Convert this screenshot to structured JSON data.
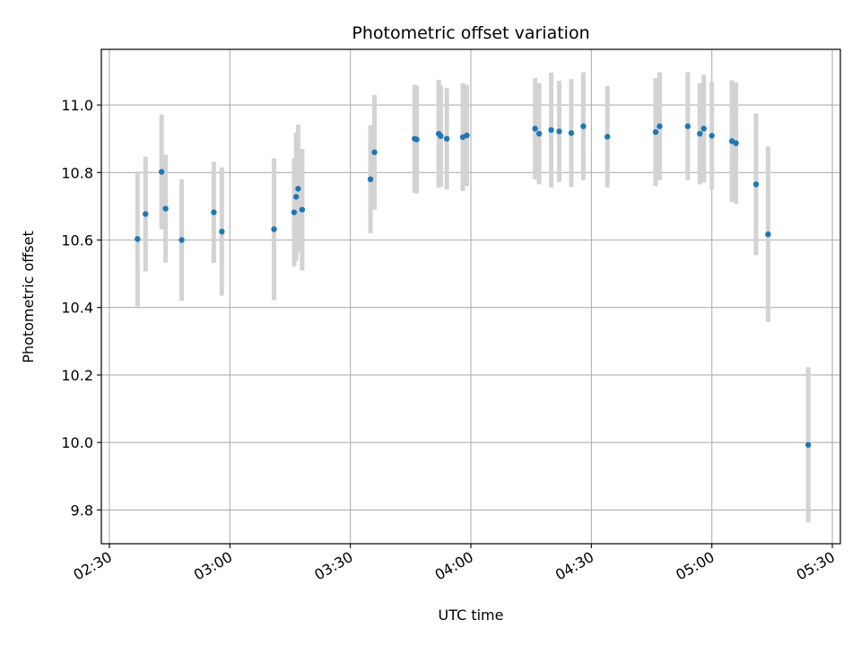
{
  "chart_data": {
    "type": "scatter",
    "title": "Photometric offset variation",
    "xlabel": "UTC time",
    "ylabel": "Photometric offset",
    "x_axis_kind": "time (minutes from 00:00 UTC)",
    "xlim": [
      "02:28",
      "05:32"
    ],
    "ylim": [
      9.7,
      11.165
    ],
    "x_ticks": [
      "02:30",
      "03:00",
      "03:30",
      "04:00",
      "04:30",
      "05:00",
      "05:30"
    ],
    "y_ticks": [
      "9.8",
      "10.0",
      "10.2",
      "10.4",
      "10.6",
      "10.8",
      "11.0"
    ],
    "grid": true,
    "point_color": "#1f77b4",
    "errorbar_color": "#d3d3d3",
    "points": [
      {
        "t": "02:37",
        "y": 10.603,
        "err": 0.2
      },
      {
        "t": "02:39",
        "y": 10.677,
        "err": 0.17
      },
      {
        "t": "02:43",
        "y": 10.802,
        "err": 0.17
      },
      {
        "t": "02:44",
        "y": 10.693,
        "err": 0.16
      },
      {
        "t": "02:48",
        "y": 10.6,
        "err": 0.18
      },
      {
        "t": "02:56",
        "y": 10.682,
        "err": 0.15
      },
      {
        "t": "02:58",
        "y": 10.625,
        "err": 0.19
      },
      {
        "t": "03:11",
        "y": 10.632,
        "err": 0.21
      },
      {
        "t": "03:16",
        "y": 10.682,
        "err": 0.16
      },
      {
        "t": "03:16.5",
        "y": 10.728,
        "err": 0.19
      },
      {
        "t": "03:17",
        "y": 10.752,
        "err": 0.19
      },
      {
        "t": "03:18",
        "y": 10.69,
        "err": 0.18
      },
      {
        "t": "03:35",
        "y": 10.78,
        "err": 0.16
      },
      {
        "t": "03:36",
        "y": 10.86,
        "err": 0.17
      },
      {
        "t": "03:46",
        "y": 10.9,
        "err": 0.16
      },
      {
        "t": "03:46.5",
        "y": 10.898,
        "err": 0.16
      },
      {
        "t": "03:52",
        "y": 10.915,
        "err": 0.16
      },
      {
        "t": "03:52.5",
        "y": 10.908,
        "err": 0.15
      },
      {
        "t": "03:54",
        "y": 10.9,
        "err": 0.15
      },
      {
        "t": "03:58",
        "y": 10.905,
        "err": 0.16
      },
      {
        "t": "03:59",
        "y": 10.91,
        "err": 0.15
      },
      {
        "t": "04:16",
        "y": 10.93,
        "err": 0.15
      },
      {
        "t": "04:17",
        "y": 10.915,
        "err": 0.15
      },
      {
        "t": "04:20",
        "y": 10.926,
        "err": 0.17
      },
      {
        "t": "04:22",
        "y": 10.922,
        "err": 0.15
      },
      {
        "t": "04:25",
        "y": 10.917,
        "err": 0.16
      },
      {
        "t": "04:28",
        "y": 10.937,
        "err": 0.16
      },
      {
        "t": "04:34",
        "y": 10.906,
        "err": 0.15
      },
      {
        "t": "04:46",
        "y": 10.92,
        "err": 0.16
      },
      {
        "t": "04:47",
        "y": 10.937,
        "err": 0.16
      },
      {
        "t": "04:54",
        "y": 10.937,
        "err": 0.16
      },
      {
        "t": "04:57",
        "y": 10.915,
        "err": 0.15
      },
      {
        "t": "04:58",
        "y": 10.93,
        "err": 0.16
      },
      {
        "t": "05:00",
        "y": 10.909,
        "err": 0.16
      },
      {
        "t": "05:05",
        "y": 10.893,
        "err": 0.18
      },
      {
        "t": "05:06",
        "y": 10.887,
        "err": 0.18
      },
      {
        "t": "05:11",
        "y": 10.765,
        "err": 0.21
      },
      {
        "t": "05:14",
        "y": 10.617,
        "err": 0.26
      },
      {
        "t": "05:24",
        "y": 9.993,
        "err": 0.23
      }
    ]
  }
}
